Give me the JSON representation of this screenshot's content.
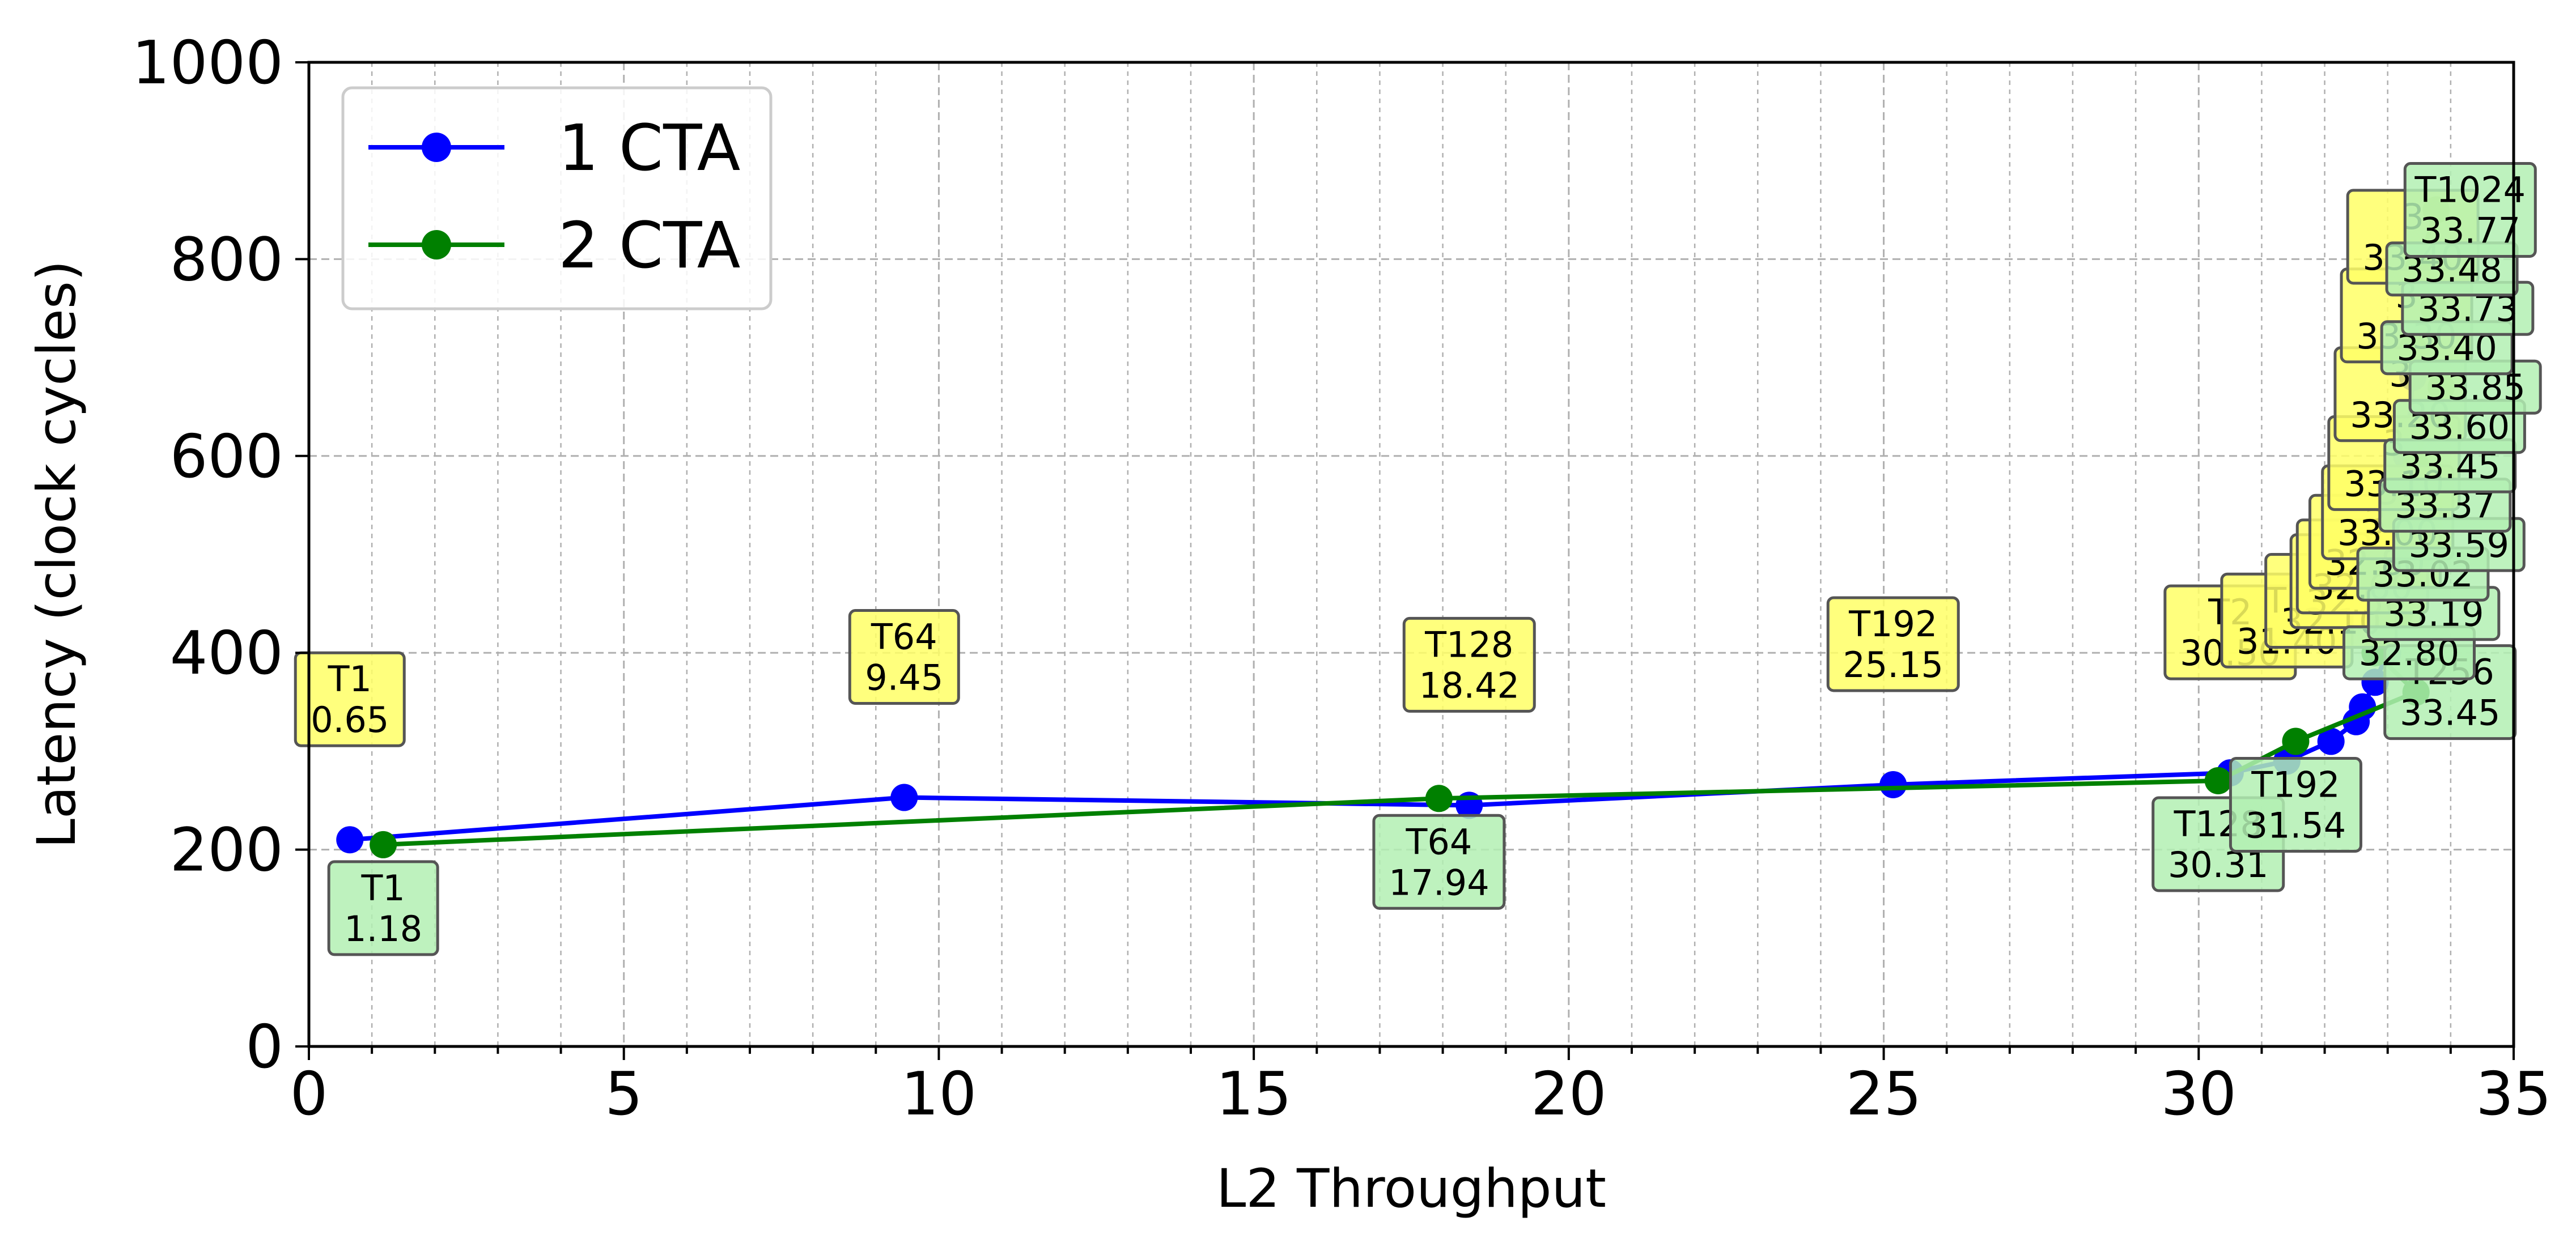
{
  "chart_data": {
    "type": "line",
    "title": "",
    "xlabel": "L2 Throughput",
    "ylabel": "Latency (clock cycles)",
    "xlim": [
      0,
      35
    ],
    "ylim": [
      0,
      1000
    ],
    "x_ticks": [
      0,
      5,
      10,
      15,
      20,
      25,
      30,
      35
    ],
    "y_ticks": [
      0,
      200,
      400,
      600,
      800,
      1000
    ],
    "x_tick_labels": [
      "0",
      "5",
      "10",
      "15",
      "20",
      "25",
      "30",
      "35"
    ],
    "y_tick_labels": [
      "0",
      "200",
      "400",
      "600",
      "800",
      "1000"
    ],
    "grid": true,
    "legend_position": "top-left",
    "series": [
      {
        "name": "1 CTA",
        "color": "#0000ff",
        "annotation_fill": "#ffff66",
        "points": [
          {
            "x": 0.65,
            "y": 210,
            "label": "T1\n0.65"
          },
          {
            "x": 9.45,
            "y": 253,
            "label": "T64\n9.45"
          },
          {
            "x": 18.42,
            "y": 245,
            "label": "T128\n18.42"
          },
          {
            "x": 25.15,
            "y": 266,
            "label": "T192\n25.15"
          },
          {
            "x": 30.5,
            "y": 278,
            "label": "T2\n30.50"
          },
          {
            "x": 31.4,
            "y": 290,
            "label": "T3\n31.40"
          },
          {
            "x": 32.1,
            "y": 310,
            "label": "T3\n32.10"
          },
          {
            "x": 32.5,
            "y": 330,
            "label": "3\n32.50"
          },
          {
            "x": 32.6,
            "y": 345,
            "label": "3\n32.60"
          },
          {
            "x": 32.8,
            "y": 370,
            "label": "3\n32.80"
          },
          {
            "x": 33.0,
            "y": 400,
            "label": "3\n33.00"
          },
          {
            "x": 33.1,
            "y": 450,
            "label": "3\n33.10"
          },
          {
            "x": 33.2,
            "y": 520,
            "label": "3\n33.20"
          },
          {
            "x": 33.3,
            "y": 600,
            "label": "3\n33.30"
          },
          {
            "x": 33.4,
            "y": 680,
            "label": "3\n33.40"
          }
        ]
      },
      {
        "name": "2 CTA",
        "color": "#008000",
        "annotation_fill": "#b3f0b3",
        "points": [
          {
            "x": 1.18,
            "y": 205,
            "label": "T1\n1.18"
          },
          {
            "x": 17.94,
            "y": 252,
            "label": "T64\n17.94"
          },
          {
            "x": 30.31,
            "y": 270,
            "label": "T128\n30.31"
          },
          {
            "x": 31.54,
            "y": 310,
            "label": "T192\n31.54"
          },
          {
            "x": 33.45,
            "y": 360,
            "label": "T256\n33.45"
          },
          {
            "x": 32.8,
            "y": 400,
            "label": "32.80"
          },
          {
            "x": 33.19,
            "y": 440,
            "label": "33.19"
          },
          {
            "x": 33.02,
            "y": 480,
            "label": "33.02"
          },
          {
            "x": 33.59,
            "y": 510,
            "label": "33.59"
          },
          {
            "x": 33.37,
            "y": 550,
            "label": "33.37"
          },
          {
            "x": 33.45,
            "y": 590,
            "label": "33.45"
          },
          {
            "x": 33.6,
            "y": 630,
            "label": "33.60"
          },
          {
            "x": 33.85,
            "y": 670,
            "label": "33.85"
          },
          {
            "x": 33.4,
            "y": 710,
            "label": "33.40"
          },
          {
            "x": 33.73,
            "y": 750,
            "label": "33.73"
          },
          {
            "x": 33.48,
            "y": 790,
            "label": "33.48"
          },
          {
            "x": 33.77,
            "y": 850,
            "label": "T1024\n33.77"
          }
        ]
      }
    ]
  }
}
